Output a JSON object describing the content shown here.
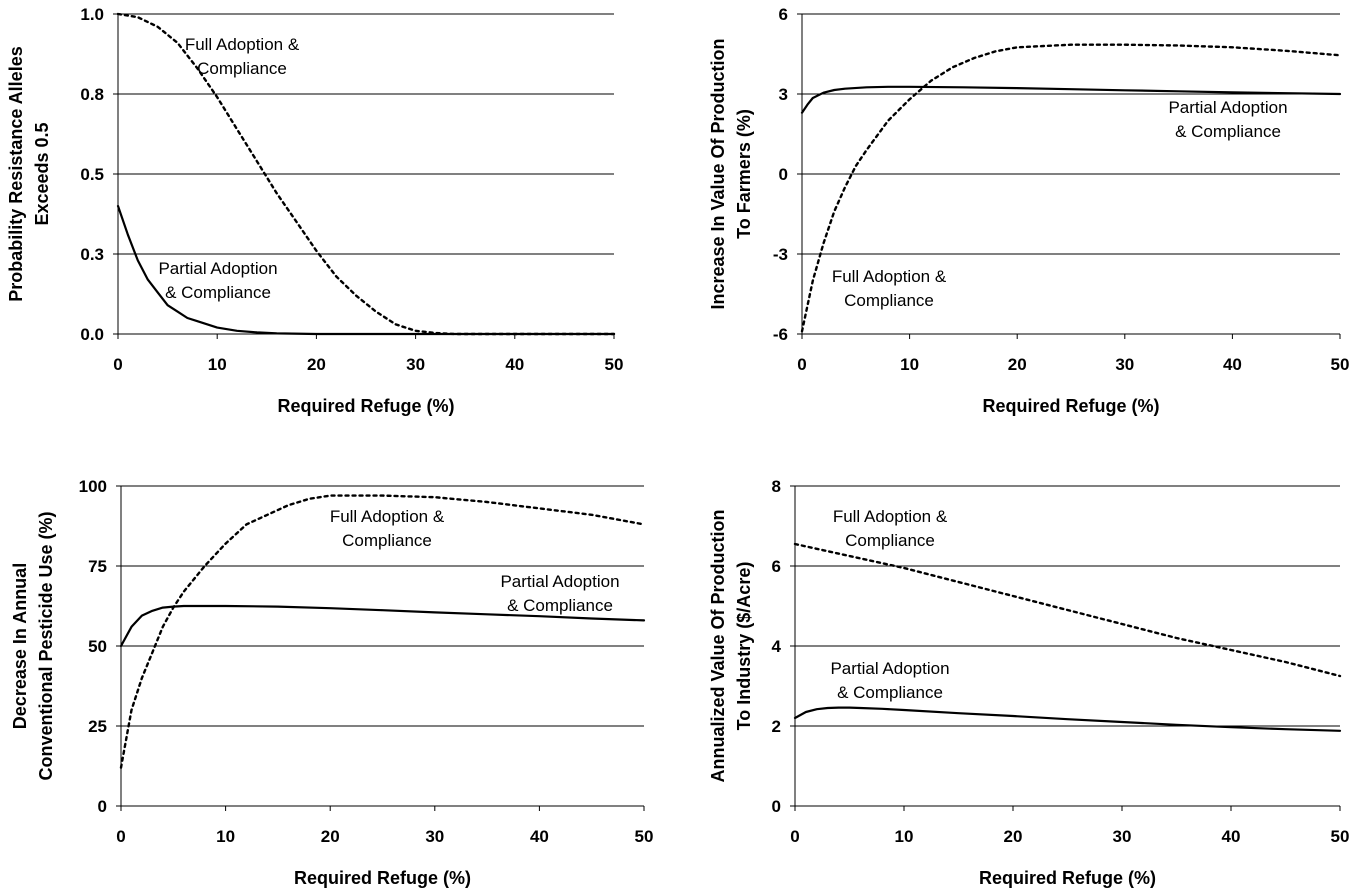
{
  "chart_data": [
    {
      "type": "line",
      "ylabel": [
        "Probability Resistance Alleles",
        "Exceeds 0.5"
      ],
      "xlabel": "Required Refuge (%)",
      "xlim": [
        0,
        50
      ],
      "ylim": [
        0,
        1
      ],
      "xticks": [
        "0",
        "10",
        "20",
        "30",
        "40",
        "50"
      ],
      "yticks": [
        {
          "value": 0,
          "label": "0.0"
        },
        {
          "value": 0.25,
          "label": "0.3"
        },
        {
          "value": 0.5,
          "label": "0.5"
        },
        {
          "value": 0.75,
          "label": "0.8"
        },
        {
          "value": 1,
          "label": "1.0"
        }
      ],
      "grid": "horizontal",
      "series": [
        {
          "name": [
            "Full Adoption &",
            "Compliance"
          ],
          "style": "dotted",
          "x": [
            0,
            2,
            4,
            6,
            8,
            10,
            12,
            14,
            16,
            18,
            20,
            22,
            24,
            26,
            28,
            30,
            32,
            34,
            40,
            50
          ],
          "y": [
            1.0,
            0.99,
            0.96,
            0.91,
            0.83,
            0.74,
            0.64,
            0.54,
            0.44,
            0.35,
            0.26,
            0.18,
            0.12,
            0.07,
            0.03,
            0.01,
            0.003,
            0.0,
            0.0,
            0.0
          ]
        },
        {
          "name": [
            "Partial Adoption",
            "& Compliance"
          ],
          "style": "solid",
          "x": [
            0,
            1,
            2,
            3,
            4,
            5,
            6,
            7,
            8,
            10,
            12,
            14,
            16,
            20,
            30,
            40,
            50
          ],
          "y": [
            0.4,
            0.31,
            0.23,
            0.17,
            0.13,
            0.09,
            0.07,
            0.05,
            0.04,
            0.02,
            0.01,
            0.005,
            0.002,
            0.0,
            0.0,
            0.0,
            0.0
          ]
        }
      ]
    },
    {
      "type": "line",
      "ylabel": [
        "Increase In Value Of Production",
        "To Farmers (%)"
      ],
      "xlabel": "Required Refuge (%)",
      "xlim": [
        0,
        50
      ],
      "ylim": [
        -6,
        6
      ],
      "xticks": [
        "0",
        "10",
        "20",
        "30",
        "40",
        "50"
      ],
      "yticks": [
        {
          "value": -6,
          "label": "-6"
        },
        {
          "value": -3,
          "label": "-3"
        },
        {
          "value": 0,
          "label": "0"
        },
        {
          "value": 3,
          "label": "3"
        },
        {
          "value": 6,
          "label": "6"
        }
      ],
      "grid": "horizontal",
      "series": [
        {
          "name": [
            "Partial Adoption",
            "& Compliance"
          ],
          "style": "solid",
          "x": [
            0,
            0.5,
            1,
            2,
            3,
            4,
            6,
            8,
            10,
            15,
            20,
            25,
            30,
            35,
            40,
            45,
            50
          ],
          "y": [
            2.3,
            2.6,
            2.85,
            3.05,
            3.15,
            3.2,
            3.25,
            3.27,
            3.27,
            3.25,
            3.22,
            3.18,
            3.14,
            3.1,
            3.06,
            3.03,
            3.0
          ]
        },
        {
          "name": [
            "Full Adoption &",
            "Compliance"
          ],
          "style": "dotted",
          "x": [
            0,
            1,
            2,
            3,
            4,
            5,
            6,
            8,
            10,
            12,
            14,
            16,
            18,
            20,
            25,
            30,
            35,
            40,
            45,
            50
          ],
          "y": [
            -5.9,
            -4.0,
            -2.6,
            -1.4,
            -0.5,
            0.3,
            0.9,
            2.0,
            2.8,
            3.5,
            4.0,
            4.35,
            4.6,
            4.75,
            4.85,
            4.85,
            4.82,
            4.75,
            4.62,
            4.45
          ]
        }
      ]
    },
    {
      "type": "line",
      "ylabel": [
        "Decrease In Annual",
        "Conventional Pesticide Use (%)"
      ],
      "xlabel": "Required Refuge (%)",
      "xlim": [
        0,
        50
      ],
      "ylim": [
        0,
        100
      ],
      "xticks": [
        "0",
        "10",
        "20",
        "30",
        "40",
        "50"
      ],
      "yticks": [
        {
          "value": 0,
          "label": "0"
        },
        {
          "value": 25,
          "label": "25"
        },
        {
          "value": 50,
          "label": "50"
        },
        {
          "value": 75,
          "label": "75"
        },
        {
          "value": 100,
          "label": "100"
        }
      ],
      "grid": "horizontal",
      "series": [
        {
          "name": [
            "Full Adoption &",
            "Compliance"
          ],
          "style": "dotted",
          "x": [
            0,
            1,
            2,
            3,
            4,
            5,
            6,
            8,
            10,
            12,
            14,
            16,
            18,
            20,
            25,
            30,
            35,
            40,
            45,
            50
          ],
          "y": [
            12,
            30,
            40,
            48,
            56,
            62,
            67,
            75,
            82,
            88,
            91,
            94,
            96,
            97,
            97,
            96.5,
            95,
            93,
            91,
            88
          ]
        },
        {
          "name": [
            "Partial Adoption",
            "& Compliance"
          ],
          "style": "solid",
          "x": [
            0,
            1,
            2,
            3,
            4,
            5,
            6,
            8,
            10,
            15,
            20,
            25,
            30,
            35,
            40,
            45,
            50
          ],
          "y": [
            50,
            56,
            59.5,
            61,
            62,
            62.3,
            62.5,
            62.5,
            62.5,
            62.3,
            61.8,
            61.2,
            60.5,
            59.9,
            59.3,
            58.6,
            58
          ]
        }
      ]
    },
    {
      "type": "line",
      "ylabel": [
        "Annualized Value Of Production",
        "To Industry ($/Acre)"
      ],
      "xlabel": "Required Refuge (%)",
      "xlim": [
        0,
        50
      ],
      "ylim": [
        0,
        8
      ],
      "xticks": [
        "0",
        "10",
        "20",
        "30",
        "40",
        "50"
      ],
      "yticks": [
        {
          "value": 0,
          "label": "0"
        },
        {
          "value": 2,
          "label": "2"
        },
        {
          "value": 4,
          "label": "4"
        },
        {
          "value": 6,
          "label": "6"
        },
        {
          "value": 8,
          "label": "8"
        }
      ],
      "grid": "horizontal",
      "series": [
        {
          "name": [
            "Full Adoption &",
            "Compliance"
          ],
          "style": "dotted",
          "x": [
            0,
            5,
            10,
            15,
            20,
            25,
            30,
            35,
            40,
            45,
            50
          ],
          "y": [
            6.55,
            6.25,
            5.95,
            5.6,
            5.25,
            4.9,
            4.55,
            4.2,
            3.9,
            3.6,
            3.25
          ]
        },
        {
          "name": [
            "Partial Adoption",
            "& Compliance"
          ],
          "style": "solid",
          "x": [
            0,
            1,
            2,
            3,
            4,
            5,
            6,
            8,
            10,
            15,
            20,
            25,
            30,
            35,
            40,
            45,
            50
          ],
          "y": [
            2.2,
            2.35,
            2.42,
            2.45,
            2.46,
            2.46,
            2.45,
            2.43,
            2.4,
            2.32,
            2.25,
            2.17,
            2.1,
            2.03,
            1.97,
            1.92,
            1.88
          ]
        }
      ]
    }
  ]
}
